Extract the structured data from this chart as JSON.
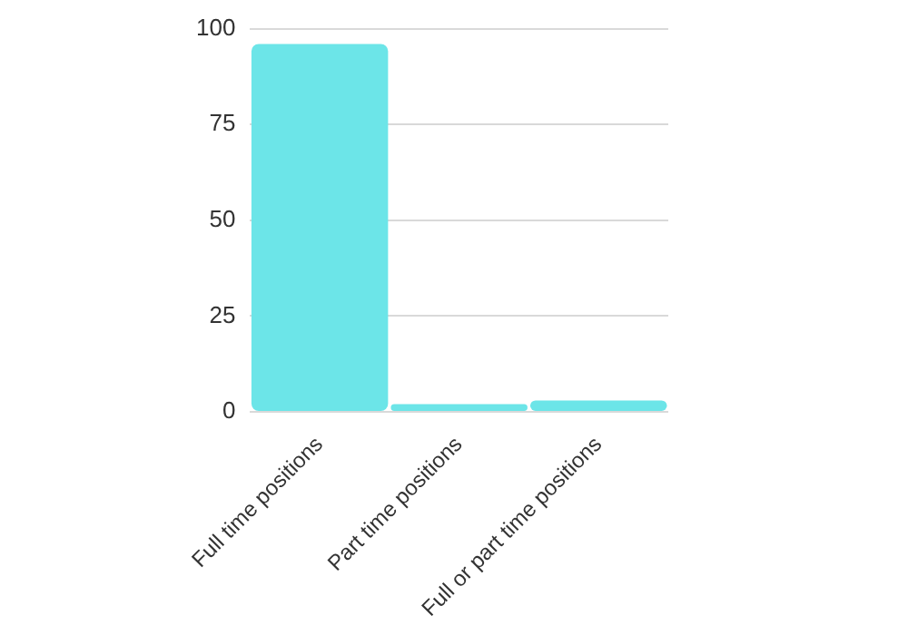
{
  "chart_data": {
    "type": "bar",
    "categories": [
      "Full time positions",
      "Part time positions",
      "Full or part time positions"
    ],
    "values": [
      96,
      2,
      3
    ],
    "color": "#6ce5e8",
    "ylim": [
      0,
      100
    ],
    "yticks": [
      0,
      25,
      50,
      75,
      100
    ],
    "grid": "y",
    "legend": false
  }
}
